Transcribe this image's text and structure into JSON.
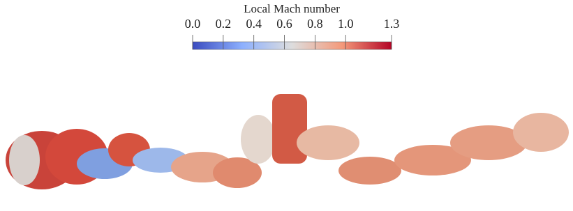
{
  "colorbar": {
    "title": "Local Mach number",
    "lim": [
      0,
      1.3
    ],
    "ticks": [
      {
        "value": 0,
        "label": "0.0"
      },
      {
        "value": 0.2,
        "label": "0.2"
      },
      {
        "value": 0.4,
        "label": "0.4"
      },
      {
        "value": 0.6,
        "label": "0.6"
      },
      {
        "value": 0.8,
        "label": "0.8"
      },
      {
        "value": 1.0,
        "label": "1.0"
      },
      {
        "value": 1.3,
        "label": "1.3"
      }
    ],
    "colors": [
      "#3b4cc0",
      "#8db0fe",
      "#dddddd",
      "#f49a7b",
      "#b40426"
    ]
  }
}
